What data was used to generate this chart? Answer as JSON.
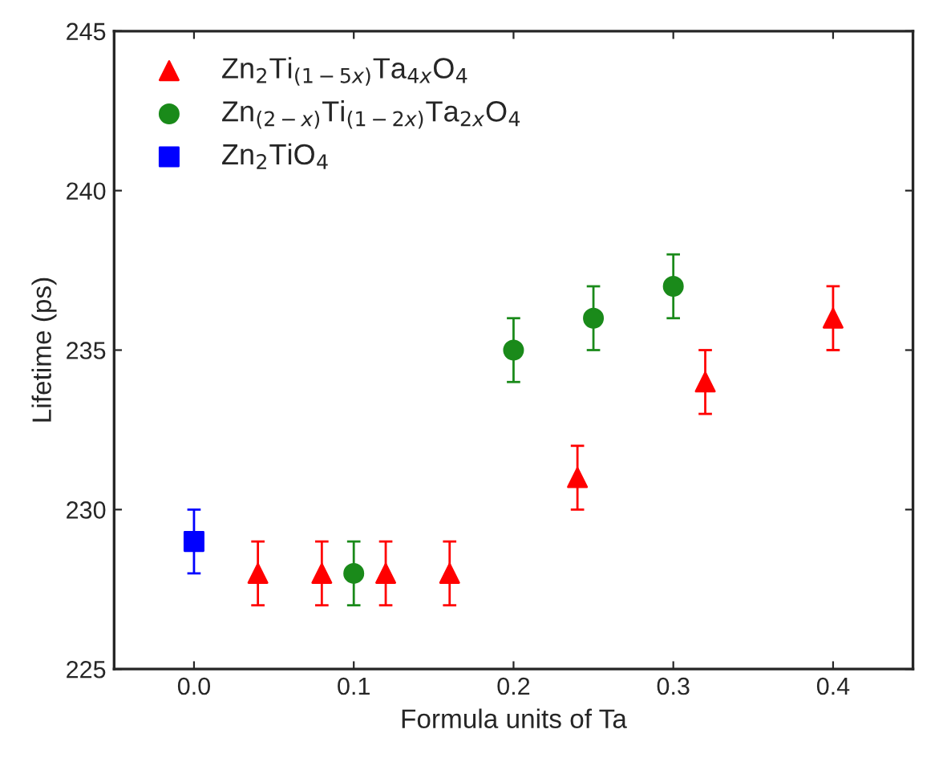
{
  "chart_data": {
    "type": "scatter",
    "xlabel": "Formula units of Ta",
    "ylabel": "Lifetime (ps)",
    "xlim": [
      -0.05,
      0.45
    ],
    "xticks": [
      {
        "value": 0,
        "label": "0.0"
      },
      0.1,
      0.2,
      0.3,
      0.4
    ],
    "ylim": [
      225,
      245
    ],
    "yticks": [
      225,
      230,
      235,
      240,
      245
    ],
    "grid": false,
    "legend": "top left",
    "series": [
      {
        "name": "Zn$_{2}$Ti$_{(1−5x)}$Ta$_{4x}$O$_{4}$",
        "color": "#ff0000",
        "marker": "triangle",
        "x": [
          0.04,
          0.08,
          0.12,
          0.16,
          0.24,
          0.32,
          0.4
        ],
        "values": [
          228,
          228,
          228,
          228,
          231,
          234,
          236
        ],
        "errors": [
          1,
          1,
          1,
          1,
          1,
          1,
          1
        ]
      },
      {
        "name": "Zn$_{(2−x)}$Ti$_{(1−2x)}$Ta$_{2x}$O$_{4}$",
        "color": "#1a8a1a",
        "marker": "circle",
        "x": [
          0.1,
          0.2,
          0.25,
          0.3
        ],
        "values": [
          228,
          235,
          236,
          237
        ],
        "errors": [
          1,
          1,
          1,
          1
        ]
      },
      {
        "name": "Zn$_{2}$TiO$_{4}$",
        "color": "#0000ff",
        "marker": "square",
        "x": [
          0
        ],
        "values": [
          229
        ],
        "errors": [
          1
        ]
      }
    ]
  }
}
